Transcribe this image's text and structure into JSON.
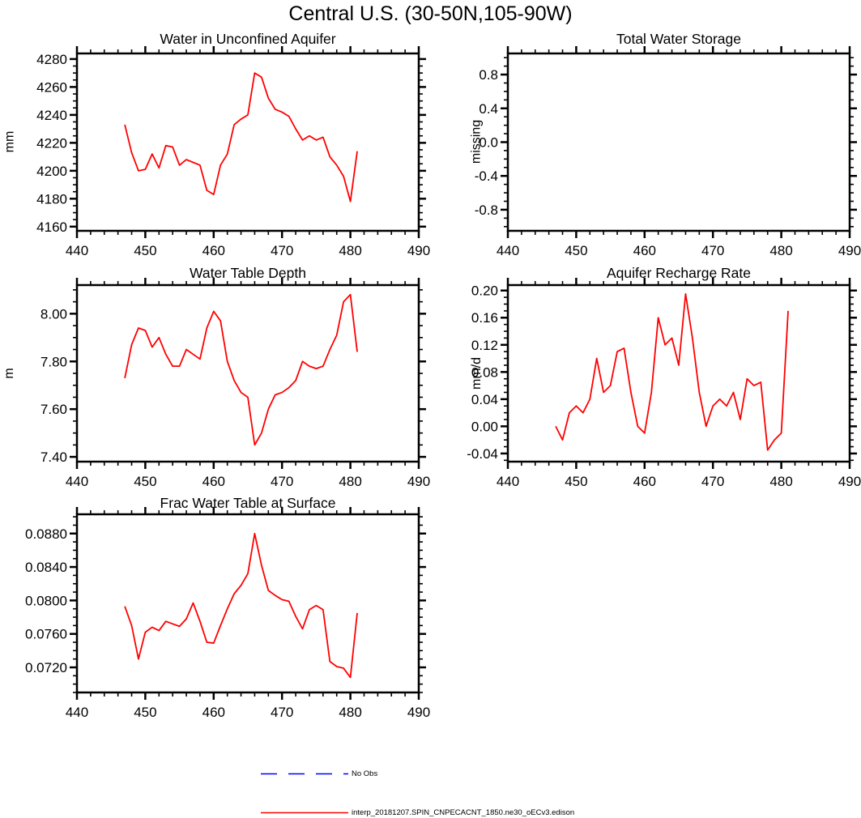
{
  "page_title": "Central U.S. (30-50N,105-90W)",
  "colors": {
    "axis": "#000000",
    "series": "#ff0000",
    "no_obs": "#0000ff"
  },
  "legend": {
    "no_obs_label": "No Obs",
    "series_label": "interp_20181207.SPIN_CNPECACNT_1850.ne30_oECv3.edison"
  },
  "chart_data": [
    {
      "id": "water-in-unconfined-aquifer",
      "type": "line",
      "title": "Water in Unconfined Aquifer",
      "ylabel": "mm",
      "xlim": [
        440,
        490
      ],
      "ylim": [
        4157,
        4284
      ],
      "xticks": [
        "440",
        "450",
        "460",
        "470",
        "480",
        "490"
      ],
      "yticks": [
        "4160",
        "4180",
        "4200",
        "4220",
        "4240",
        "4260",
        "4280"
      ],
      "x": [
        447,
        448,
        449,
        450,
        451,
        452,
        453,
        454,
        455,
        456,
        457,
        458,
        459,
        460,
        461,
        462,
        463,
        464,
        465,
        466,
        467,
        468,
        469,
        470,
        471,
        472,
        473,
        474,
        475,
        476,
        477,
        478,
        479,
        480,
        481
      ],
      "y": [
        4233,
        4213,
        4200,
        4201,
        4212,
        4202,
        4218,
        4217,
        4204,
        4208,
        4206,
        4204,
        4186,
        4183,
        4204,
        4212,
        4233,
        4237,
        4240,
        4270,
        4267,
        4252,
        4244,
        4242,
        4239,
        4230,
        4222,
        4225,
        4222,
        4224,
        4210,
        4204,
        4196,
        4178,
        4214
      ]
    },
    {
      "id": "total-water-storage",
      "type": "line",
      "title": "Total Water Storage",
      "ylabel": "missing",
      "xlim": [
        440,
        490
      ],
      "ylim": [
        -1.05,
        1.05
      ],
      "xticks": [
        "440",
        "450",
        "460",
        "470",
        "480",
        "490"
      ],
      "yticks": [
        "-0.8",
        "-0.4",
        "0.0",
        "0.4",
        "0.8"
      ],
      "x": [],
      "y": []
    },
    {
      "id": "water-table-depth",
      "type": "line",
      "title": "Water Table Depth",
      "ylabel": "m",
      "xlim": [
        440,
        490
      ],
      "ylim": [
        7.38,
        8.12
      ],
      "xticks": [
        "440",
        "450",
        "460",
        "470",
        "480",
        "490"
      ],
      "yticks": [
        "7.40",
        "7.60",
        "7.80",
        "8.00"
      ],
      "x": [
        447,
        448,
        449,
        450,
        451,
        452,
        453,
        454,
        455,
        456,
        457,
        458,
        459,
        460,
        461,
        462,
        463,
        464,
        465,
        466,
        467,
        468,
        469,
        470,
        471,
        472,
        473,
        474,
        475,
        476,
        477,
        478,
        479,
        480,
        481
      ],
      "y": [
        7.73,
        7.87,
        7.94,
        7.93,
        7.86,
        7.9,
        7.83,
        7.78,
        7.78,
        7.85,
        7.83,
        7.81,
        7.94,
        8.01,
        7.97,
        7.8,
        7.72,
        7.67,
        7.65,
        7.45,
        7.5,
        7.6,
        7.66,
        7.67,
        7.69,
        7.72,
        7.8,
        7.78,
        7.77,
        7.78,
        7.85,
        7.91,
        8.05,
        8.08,
        7.84
      ]
    },
    {
      "id": "aquifer-recharge-rate",
      "type": "line",
      "title": "Aquifer Recharge Rate",
      "ylabel": "mm/d",
      "xlim": [
        440,
        490
      ],
      "ylim": [
        -0.052,
        0.208
      ],
      "xticks": [
        "440",
        "450",
        "460",
        "470",
        "480",
        "490"
      ],
      "yticks": [
        "-0.04",
        "0.00",
        "0.04",
        "0.08",
        "0.12",
        "0.16",
        "0.20"
      ],
      "x": [
        447,
        448,
        449,
        450,
        451,
        452,
        453,
        454,
        455,
        456,
        457,
        458,
        459,
        460,
        461,
        462,
        463,
        464,
        465,
        466,
        467,
        468,
        469,
        470,
        471,
        472,
        473,
        474,
        475,
        476,
        477,
        478,
        479,
        480,
        481
      ],
      "y": [
        0.0,
        -0.02,
        0.02,
        0.03,
        0.02,
        0.04,
        0.1,
        0.05,
        0.06,
        0.11,
        0.115,
        0.05,
        0.0,
        -0.01,
        0.05,
        0.16,
        0.12,
        0.13,
        0.09,
        0.195,
        0.13,
        0.05,
        0.0,
        0.03,
        0.04,
        0.03,
        0.05,
        0.01,
        0.07,
        0.06,
        0.065,
        -0.035,
        -0.02,
        -0.01,
        0.17
      ]
    },
    {
      "id": "frac-water-table-at-surface",
      "type": "line",
      "title": "Frac Water Table at Surface",
      "ylabel": "",
      "xlim": [
        440,
        490
      ],
      "ylim": [
        0.069,
        0.0903
      ],
      "xticks": [
        "440",
        "450",
        "460",
        "470",
        "480",
        "490"
      ],
      "yticks": [
        "0.0720",
        "0.0760",
        "0.0800",
        "0.0840",
        "0.0880"
      ],
      "x": [
        447,
        448,
        449,
        450,
        451,
        452,
        453,
        454,
        455,
        456,
        457,
        458,
        459,
        460,
        461,
        462,
        463,
        464,
        465,
        466,
        467,
        468,
        469,
        470,
        471,
        472,
        473,
        474,
        475,
        476,
        477,
        478,
        479,
        480,
        481
      ],
      "y": [
        0.0793,
        0.077,
        0.073,
        0.0762,
        0.0768,
        0.0764,
        0.0775,
        0.0772,
        0.0769,
        0.0778,
        0.0797,
        0.0775,
        0.075,
        0.0749,
        0.077,
        0.079,
        0.0808,
        0.0818,
        0.0832,
        0.088,
        0.0842,
        0.0812,
        0.0806,
        0.0801,
        0.0799,
        0.0781,
        0.0766,
        0.0789,
        0.0794,
        0.0789,
        0.0727,
        0.0721,
        0.0719,
        0.0708,
        0.0785
      ]
    }
  ]
}
